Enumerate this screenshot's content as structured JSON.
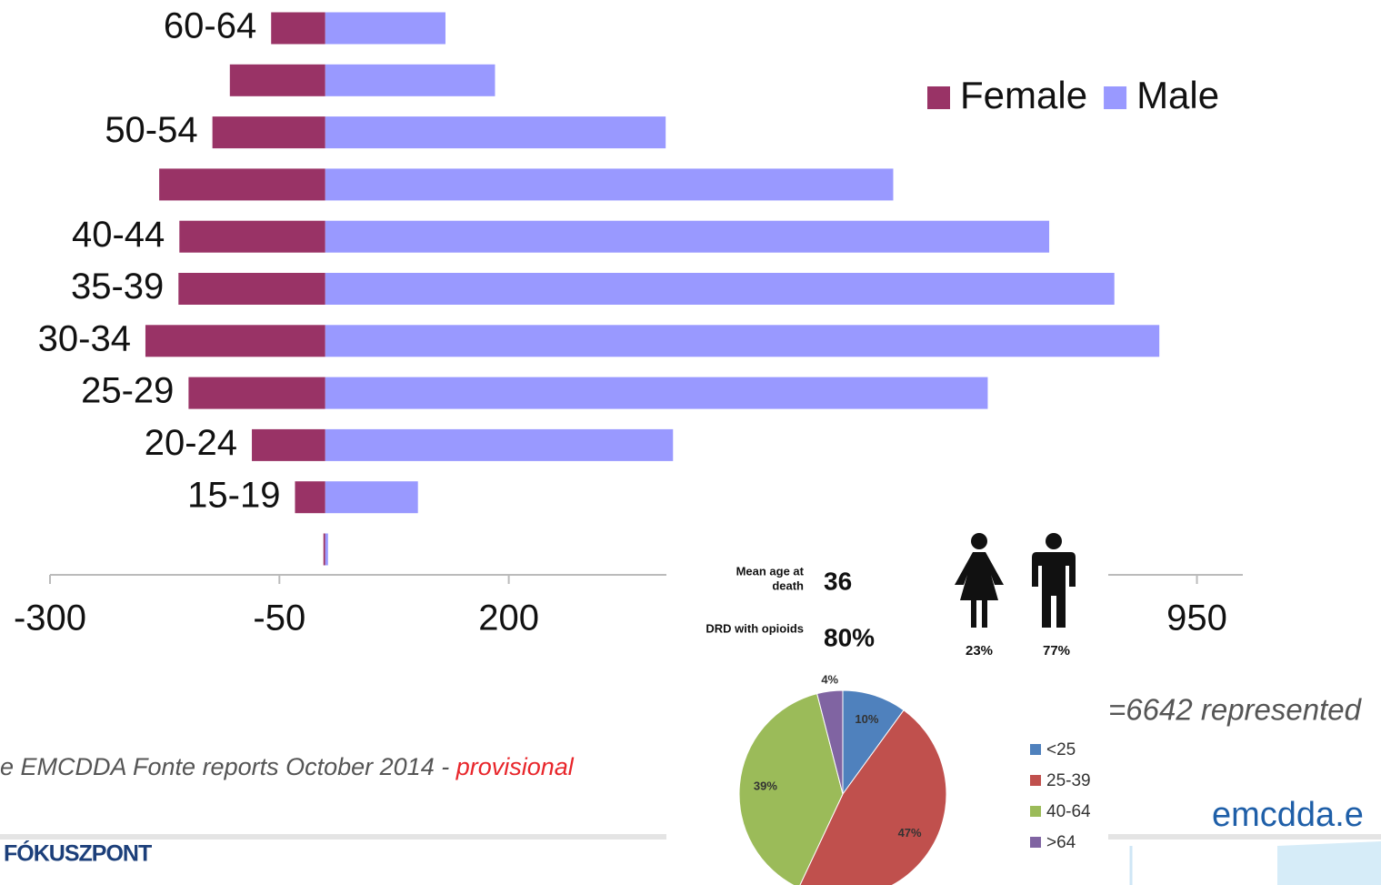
{
  "chart_data": [
    {
      "type": "bar",
      "categories": [
        "60-64",
        null,
        "50-54",
        null,
        "40-44",
        "35-39",
        "30-34",
        "25-29",
        "20-24",
        "15-19",
        null
      ],
      "series": [
        {
          "name": "Female",
          "color": "#993366",
          "values": [
            -59,
            -104,
            -123,
            -181,
            -159,
            -160,
            -196,
            -149,
            -80,
            -33,
            -2
          ]
        },
        {
          "name": "Male",
          "color": "#9999ff",
          "values": [
            131,
            185,
            371,
            619,
            789,
            860,
            909,
            722,
            379,
            101,
            3
          ]
        }
      ],
      "xlim": [
        -300,
        1000
      ],
      "xticks": [
        -300,
        -50,
        200,
        950
      ],
      "grid": false,
      "legend": "top-right"
    },
    {
      "type": "pie",
      "categories": [
        "<25",
        "25-39",
        "40-64",
        ">64"
      ],
      "values": [
        10,
        47,
        39,
        4
      ],
      "value_labels": [
        "10%",
        "47%",
        "39%",
        "4%"
      ],
      "colors": [
        "#4f81bd",
        "#c0504d",
        "#9bbb59",
        "#8064a2"
      ]
    }
  ],
  "panel": {
    "mean_age_label": [
      "Mean age at",
      "death"
    ],
    "mean_age": "36",
    "opioids_label": "DRD with opioids",
    "opioids": "80%",
    "female_share": "23%",
    "male_share": "77%"
  },
  "footer": {
    "source": "e EMCDDA Fonte reports October 2014 - ",
    "status": "provisional",
    "logo": "FÓKUSZPONT",
    "note": "=6642  represented",
    "site": "emcdda.e"
  }
}
